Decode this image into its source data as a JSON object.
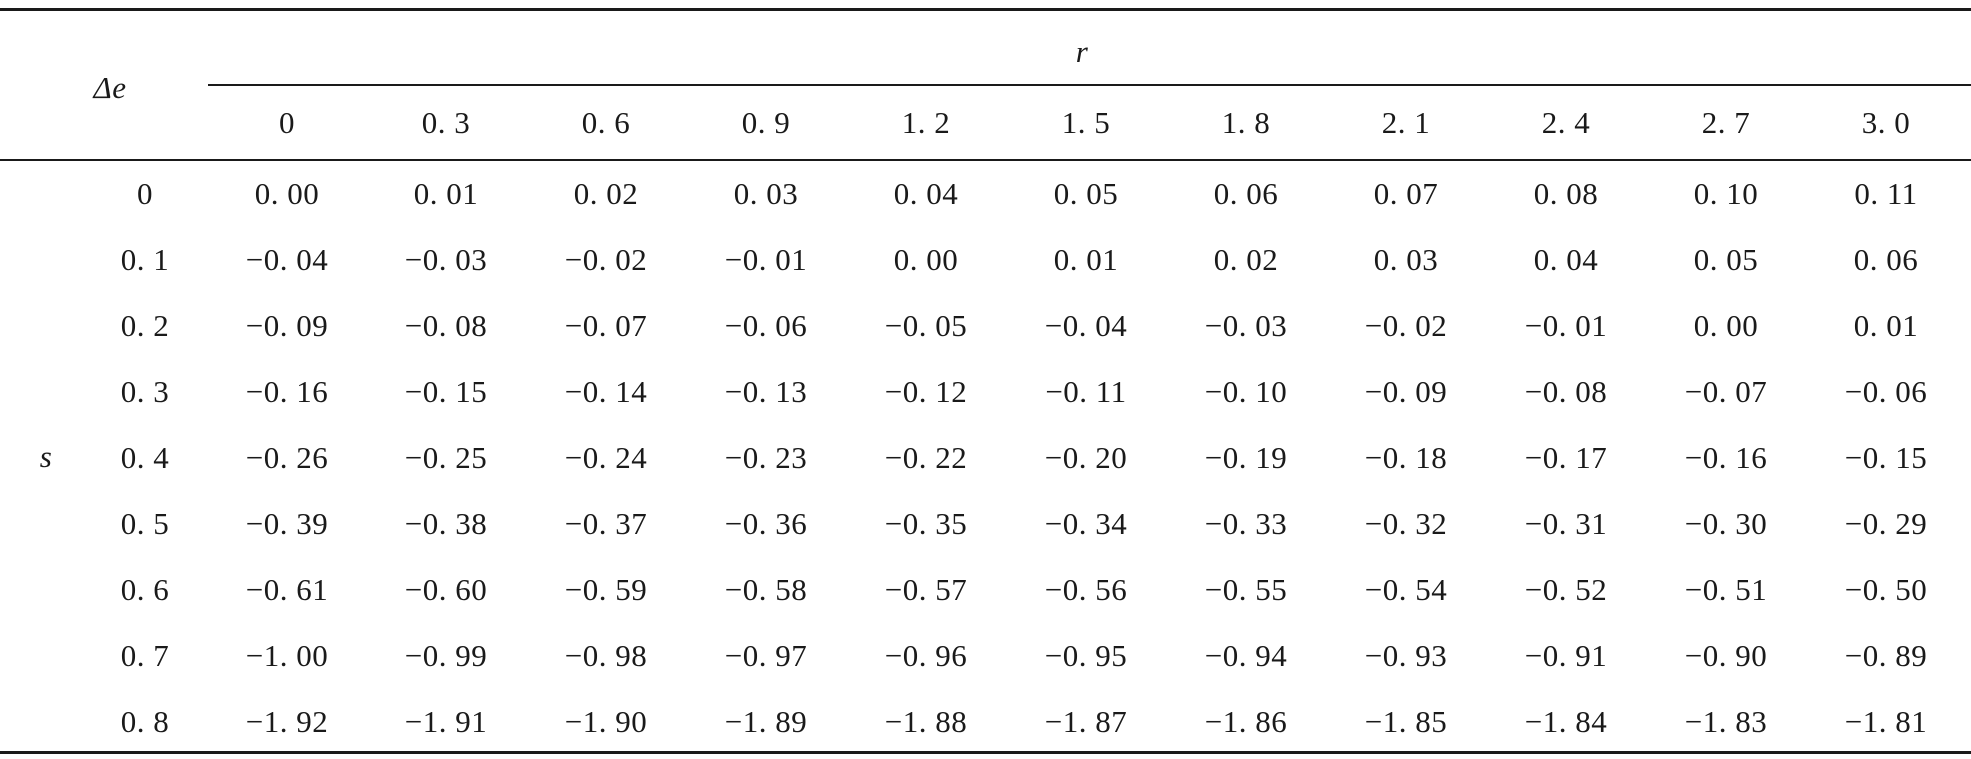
{
  "table": {
    "corner_label": "Δe",
    "column_group_label": "r",
    "row_group_label": "s",
    "columns": [
      "0",
      "0. 3",
      "0. 6",
      "0. 9",
      "1. 2",
      "1. 5",
      "1. 8",
      "2. 1",
      "2. 4",
      "2. 7",
      "3. 0"
    ],
    "rows": [
      {
        "s": "0",
        "values": [
          "0. 00",
          "0. 01",
          "0. 02",
          "0. 03",
          "0. 04",
          "0. 05",
          "0. 06",
          "0. 07",
          "0. 08",
          "0. 10",
          "0. 11"
        ]
      },
      {
        "s": "0. 1",
        "values": [
          "−0. 04",
          "−0. 03",
          "−0. 02",
          "−0. 01",
          "0. 00",
          "0. 01",
          "0. 02",
          "0. 03",
          "0. 04",
          "0. 05",
          "0. 06"
        ]
      },
      {
        "s": "0. 2",
        "values": [
          "−0. 09",
          "−0. 08",
          "−0. 07",
          "−0. 06",
          "−0. 05",
          "−0. 04",
          "−0. 03",
          "−0. 02",
          "−0. 01",
          "0. 00",
          "0. 01"
        ]
      },
      {
        "s": "0. 3",
        "values": [
          "−0. 16",
          "−0. 15",
          "−0. 14",
          "−0. 13",
          "−0. 12",
          "−0. 11",
          "−0. 10",
          "−0. 09",
          "−0. 08",
          "−0. 07",
          "−0. 06"
        ]
      },
      {
        "s": "0. 4",
        "values": [
          "−0. 26",
          "−0. 25",
          "−0. 24",
          "−0. 23",
          "−0. 22",
          "−0. 20",
          "−0. 19",
          "−0. 18",
          "−0. 17",
          "−0. 16",
          "−0. 15"
        ]
      },
      {
        "s": "0. 5",
        "values": [
          "−0. 39",
          "−0. 38",
          "−0. 37",
          "−0. 36",
          "−0. 35",
          "−0. 34",
          "−0. 33",
          "−0. 32",
          "−0. 31",
          "−0. 30",
          "−0. 29"
        ]
      },
      {
        "s": "0. 6",
        "values": [
          "−0. 61",
          "−0. 60",
          "−0. 59",
          "−0. 58",
          "−0. 57",
          "−0. 56",
          "−0. 55",
          "−0. 54",
          "−0. 52",
          "−0. 51",
          "−0. 50"
        ]
      },
      {
        "s": "0. 7",
        "values": [
          "−1. 00",
          "−0. 99",
          "−0. 98",
          "−0. 97",
          "−0. 96",
          "−0. 95",
          "−0. 94",
          "−0. 93",
          "−0. 91",
          "−0. 90",
          "−0. 89"
        ]
      },
      {
        "s": "0. 8",
        "values": [
          "−1. 92",
          "−1. 91",
          "−1. 90",
          "−1. 89",
          "−1. 88",
          "−1. 87",
          "−1. 86",
          "−1. 85",
          "−1. 84",
          "−1. 83",
          "−1. 81"
        ]
      }
    ]
  }
}
